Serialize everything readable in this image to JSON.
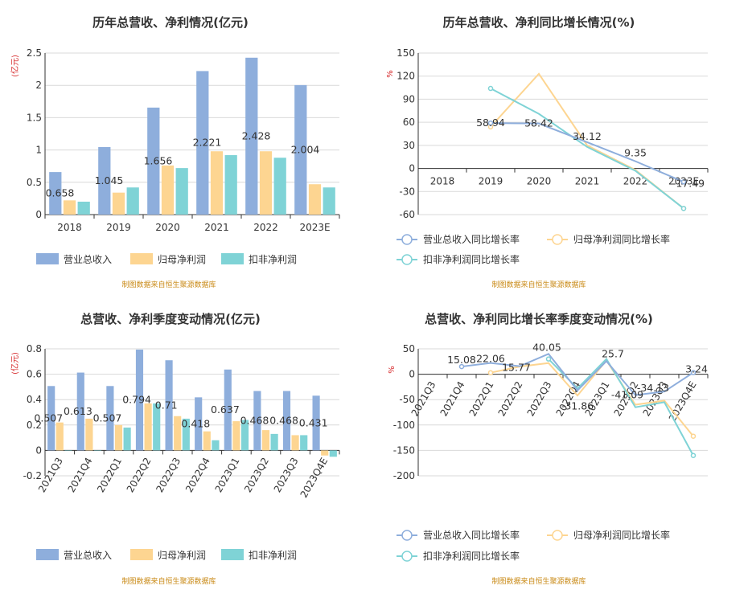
{
  "colors": {
    "revenue": "#8eaedc",
    "net_profit": "#fdd591",
    "deducted": "#7fd3d6",
    "axis": "#333333",
    "grid": "#d9d9d9",
    "unit": "#d6282a",
    "source": "#c98a16"
  },
  "chart_data": [
    {
      "type": "bar",
      "title": "历年总营收、净利情况(亿元)",
      "ylabel": "(亿元)",
      "categories": [
        "2018",
        "2019",
        "2020",
        "2021",
        "2022",
        "2023E"
      ],
      "ylim": [
        0,
        2.5
      ],
      "yticks": [
        "0",
        "0.5",
        "1",
        "1.5",
        "2",
        "2.5"
      ],
      "series": [
        {
          "name": "营业总收入",
          "values": [
            0.658,
            1.045,
            1.656,
            2.221,
            2.428,
            2.004
          ]
        },
        {
          "name": "归母净利润",
          "values": [
            0.22,
            0.34,
            0.76,
            0.98,
            0.98,
            0.47
          ]
        },
        {
          "name": "扣非净利润",
          "values": [
            0.2,
            0.42,
            0.72,
            0.92,
            0.88,
            0.42
          ]
        }
      ],
      "data_labels": [
        "0.658",
        "1.045",
        "1.656",
        "2.221",
        "2.428",
        "2.004"
      ],
      "legend_position": "bottom",
      "grid": true,
      "source": "制图数据来自恒生聚源数据库"
    },
    {
      "type": "line",
      "title": "历年总营收、净利同比增长情况(%)",
      "ylabel": "%",
      "categories": [
        "2018",
        "2019",
        "2020",
        "2021",
        "2022",
        "2023E"
      ],
      "ylim": [
        -60,
        150
      ],
      "yticks": [
        "-60",
        "-30",
        "0",
        "30",
        "60",
        "90",
        "120",
        "150"
      ],
      "series": [
        {
          "name": "营业总收入同比增长率",
          "values": [
            null,
            58.94,
            58.42,
            34.12,
            9.35,
            -17.49
          ]
        },
        {
          "name": "归母净利润同比增长率",
          "values": [
            null,
            54,
            123,
            30,
            -2,
            -52
          ]
        },
        {
          "name": "扣非净利润同比增长率",
          "values": [
            null,
            104,
            71,
            28,
            -3,
            -52
          ]
        }
      ],
      "data_labels": [
        "",
        "58.94",
        "58.42",
        "34.12",
        "9.35",
        "-17.49"
      ],
      "legend_position": "bottom",
      "grid": true,
      "source": "制图数据来自恒生聚源数据库"
    },
    {
      "type": "bar",
      "title": "总营收、净利季度变动情况(亿元)",
      "ylabel": "(亿元)",
      "categories": [
        "2021Q3",
        "2021Q4",
        "2022Q1",
        "2022Q2",
        "2022Q3",
        "2022Q4",
        "2023Q1",
        "2023Q2",
        "2023Q3",
        "2023Q4E"
      ],
      "ylim": [
        -0.2,
        0.8
      ],
      "yticks": [
        "-0.2",
        "0",
        "0.2",
        "0.4",
        "0.6",
        "0.8"
      ],
      "series": [
        {
          "name": "营业总收入",
          "values": [
            0.507,
            0.613,
            0.507,
            0.794,
            0.71,
            0.418,
            0.637,
            0.468,
            0.468,
            0.431
          ]
        },
        {
          "name": "归母净利润",
          "values": [
            0.22,
            0.25,
            0.2,
            0.37,
            0.27,
            0.15,
            0.23,
            0.16,
            0.12,
            -0.04
          ]
        },
        {
          "name": "扣非净利润",
          "values": [
            0.0,
            0.0,
            0.18,
            0.37,
            0.25,
            0.08,
            0.24,
            0.13,
            0.12,
            -0.05
          ]
        }
      ],
      "data_labels": [
        "0.507",
        "0.613",
        "0.507",
        "0.794",
        "0.71",
        "0.418",
        "0.637",
        "0.468",
        "0.468",
        "0.431"
      ],
      "legend_position": "bottom",
      "grid": true,
      "source": "制图数据来自恒生聚源数据库"
    },
    {
      "type": "line",
      "title": "总营收、净利同比增长率季度变动情况(%)",
      "ylabel": "%",
      "categories": [
        "2021Q3",
        "2021Q4",
        "2022Q1",
        "2022Q2",
        "2022Q3",
        "2022Q4",
        "2023Q1",
        "2023Q2",
        "2023Q3",
        "2023Q4E"
      ],
      "ylim": [
        -200,
        50
      ],
      "yticks": [
        "-200",
        "-150",
        "-100",
        "-50",
        "0",
        "50"
      ],
      "series": [
        {
          "name": "营业总收入同比增长率",
          "values": [
            null,
            15.08,
            22.06,
            15.77,
            40.05,
            -31.86,
            25.7,
            -41.09,
            -34.13,
            3.24
          ]
        },
        {
          "name": "归母净利润同比增长率",
          "values": [
            null,
            null,
            3,
            15,
            22,
            -42,
            27,
            -60,
            -52,
            -122
          ]
        },
        {
          "name": "扣非净利润同比增长率",
          "values": [
            null,
            null,
            null,
            null,
            30,
            -28,
            30,
            -65,
            -55,
            -160
          ]
        }
      ],
      "data_labels": [
        "",
        "15.08",
        "22.06",
        "15.77",
        "40.05",
        "-31.86",
        "25.7",
        "-41.09",
        "-34.13",
        "3.24"
      ],
      "legend_position": "bottom",
      "grid": true,
      "source": "制图数据来自恒生聚源数据库"
    }
  ]
}
